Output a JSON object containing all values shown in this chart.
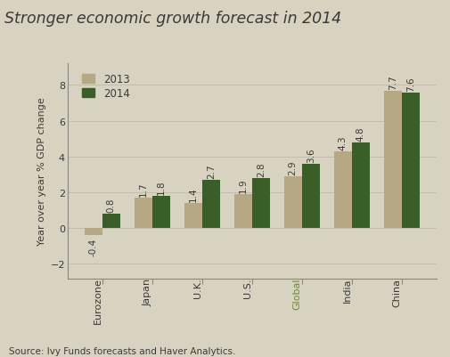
{
  "title": "Stronger economic growth forecast in 2014",
  "categories": [
    "Eurozone",
    "Japan",
    "U.K.",
    "U.S.",
    "Global",
    "India",
    "China"
  ],
  "values_2013": [
    -0.4,
    1.7,
    1.4,
    1.9,
    2.9,
    4.3,
    7.7
  ],
  "values_2014": [
    0.8,
    1.8,
    2.7,
    2.8,
    3.6,
    4.8,
    7.6
  ],
  "labels_2013": [
    "-0.4",
    "1.7",
    "1.4",
    "1.9",
    "2.9",
    "4.3",
    "7.7"
  ],
  "labels_2014": [
    "0.8",
    "1.8",
    "2.7",
    "2.8",
    "3.6",
    "4.8",
    "7.6"
  ],
  "color_2013": "#b5a882",
  "color_2014": "#3a5e28",
  "background_color": "#d8d3c0",
  "ylabel": "Year over year % GDP change",
  "source": "Source: Ivy Funds forecasts and Haver Analytics.",
  "ylim": [
    -2.8,
    9.2
  ],
  "yticks": [
    -2,
    0,
    2,
    4,
    6,
    8
  ],
  "global_label_color": "#6b8c3a",
  "title_color": "#3a3a3a",
  "legend_2013": "2013",
  "legend_2014": "2014",
  "bar_width": 0.36,
  "label_fontsize": 7.5,
  "label_rotation": 90,
  "xlabel_fontsize": 8.0
}
